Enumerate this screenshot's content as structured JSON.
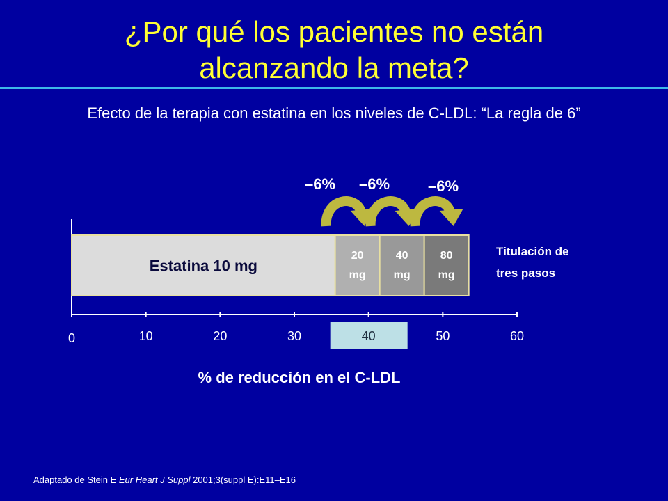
{
  "slide": {
    "title_line1": "¿Por qué los pacientes no están",
    "title_line2": "alcanzando la meta?",
    "subtitle": "Efecto de la terapia con estatina en los niveles de C-LDL: “La regla de 6”",
    "citation_prefix": "Adaptado de Stein E ",
    "citation_journal": "Eur Heart J Suppl",
    "citation_suffix": " 2001;3(suppl E):E11–E16"
  },
  "colors": {
    "background": "#0000A0",
    "title": "#FFFF33",
    "rule": "#3DB8E8",
    "base_bar": "#DCDCDC",
    "step_20": "#B0B0B0",
    "step_40": "#999999",
    "step_80": "#7A7A7A",
    "bar_border": "#E8E0A0",
    "arrow": "#BDB840",
    "highlight_tick": "#BDE0E6"
  },
  "chart_data": {
    "type": "bar",
    "orientation": "horizontal-stacked",
    "xlabel": "% de reducción en el C-LDL",
    "xlim": [
      0,
      60
    ],
    "ticks": [
      0,
      10,
      20,
      30,
      40,
      50,
      60
    ],
    "highlighted_tick": 40,
    "segments": [
      {
        "label": "Estatina 10 mg",
        "start": 0,
        "end": 35.5
      },
      {
        "label_line1": "20",
        "label_line2": "mg",
        "start": 35.5,
        "end": 41.5
      },
      {
        "label_line1": "40",
        "label_line2": "mg",
        "start": 41.5,
        "end": 47.5
      },
      {
        "label_line1": "80",
        "label_line2": "mg",
        "start": 47.5,
        "end": 53.5
      }
    ],
    "step_annotations": [
      "–6%",
      "–6%",
      "–6%"
    ],
    "side_label_line1": "Titulación de",
    "side_label_line2": "tres pasos"
  }
}
